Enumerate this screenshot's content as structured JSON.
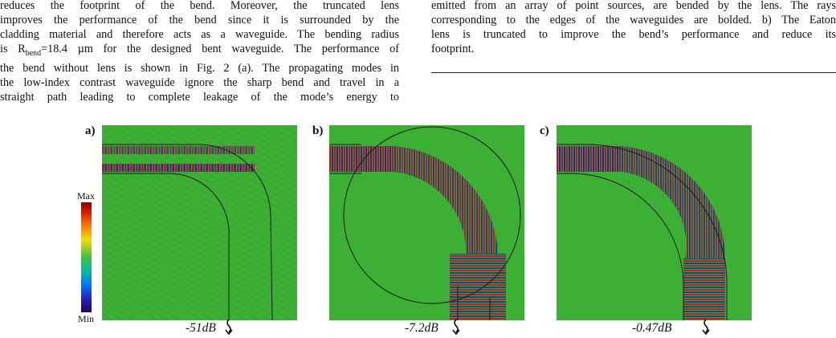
{
  "left_column": {
    "lines": [
      "reduces the footprint of the bend. Moreover, the truncated lens",
      "improves the performance of the bend since it is surrounded by the",
      "cladding material and therefore acts as a waveguide. The bending radius",
      "the bend without lens is shown in Fig. 2 (a). The propagating modes in",
      "the low-index contrast waveguide ignore the sharp bend and travel in a",
      "straight path leading to complete leakage of the mode’s energy to"
    ],
    "radius_prefix": "is R",
    "radius_sub": "bend",
    "radius_suffix": "=18.4 µm for the designed bent waveguide. The performance of"
  },
  "right_column": {
    "lines": [
      "emitted from an array of point sources, are bended by the lens. The rays",
      "corresponding to the edges of the waveguides are bolded. b) The Eaton",
      "lens is truncated to improve the bend’s performance and reduce its",
      "footprint."
    ]
  },
  "figure": {
    "panels": [
      {
        "label": "a)",
        "loss": "-51dB"
      },
      {
        "label": "b)",
        "loss": "-7.2dB"
      },
      {
        "label": "c)",
        "loss": "-0.47dB"
      }
    ],
    "colorbar": {
      "max": "Max",
      "min": "Min"
    },
    "colors": {
      "background": "#3cb034",
      "red": "#c0140a",
      "blue": "#1a2aa8",
      "outline": "#1a1a1a"
    }
  }
}
